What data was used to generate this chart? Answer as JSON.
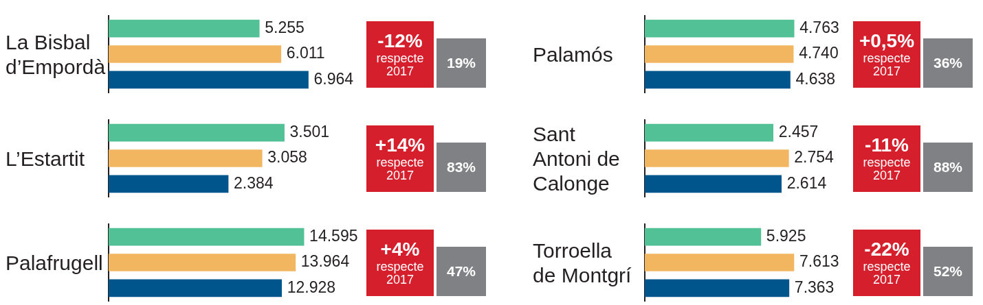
{
  "chart_data": [
    {
      "type": "bar",
      "orientation": "horizontal",
      "title": "La Bisbal d’Empordà",
      "categories": [
        null,
        null,
        null
      ],
      "values": [
        5255,
        6011,
        6964
      ],
      "colors": [
        "#52c196",
        "#f2b560",
        "#00558c"
      ],
      "value_labels": [
        "5.255",
        "6.011",
        "6.964"
      ],
      "tick_labels": false,
      "annotations": [
        "-12%",
        "respecte 2017",
        "19%"
      ]
    },
    {
      "type": "bar",
      "orientation": "horizontal",
      "title": "Palamós",
      "categories": [
        null,
        null,
        null
      ],
      "values": [
        4763,
        4740,
        4638
      ],
      "colors": [
        "#52c196",
        "#f2b560",
        "#00558c"
      ],
      "value_labels": [
        "4.763",
        "4.740",
        "4.638"
      ],
      "tick_labels": false,
      "annotations": [
        "+0,5%",
        "respecte 2017",
        "36%"
      ]
    },
    {
      "type": "bar",
      "orientation": "horizontal",
      "title": "L’Estartit",
      "categories": [
        null,
        null,
        null
      ],
      "values": [
        3501,
        3058,
        2384
      ],
      "colors": [
        "#52c196",
        "#f2b560",
        "#00558c"
      ],
      "value_labels": [
        "3.501",
        "3.058",
        "2.384"
      ],
      "tick_labels": false,
      "annotations": [
        "+14%",
        "respecte 2017",
        "83%"
      ]
    },
    {
      "type": "bar",
      "orientation": "horizontal",
      "title": "Sant Antoni de Calonge",
      "categories": [
        null,
        null,
        null
      ],
      "values": [
        2457,
        2754,
        2614
      ],
      "colors": [
        "#52c196",
        "#f2b560",
        "#00558c"
      ],
      "value_labels": [
        "2.457",
        "2.754",
        "2.614"
      ],
      "tick_labels": false,
      "annotations": [
        "-11%",
        "respecte 2017",
        "88%"
      ]
    },
    {
      "type": "bar",
      "orientation": "horizontal",
      "title": "Palafrugell",
      "categories": [
        null,
        null,
        null
      ],
      "values": [
        14595,
        13964,
        12928
      ],
      "colors": [
        "#52c196",
        "#f2b560",
        "#00558c"
      ],
      "value_labels": [
        "14.595",
        "13.964",
        "12.928"
      ],
      "tick_labels": false,
      "annotations": [
        "+4%",
        "respecte 2017",
        "47%"
      ]
    },
    {
      "type": "bar",
      "orientation": "horizontal",
      "title": "Torroella de Montgrí",
      "categories": [
        null,
        null,
        null
      ],
      "values": [
        5925,
        7613,
        7363
      ],
      "colors": [
        "#52c196",
        "#f2b560",
        "#00558c"
      ],
      "value_labels": [
        "5.925",
        "7.613",
        "7.363"
      ],
      "tick_labels": false,
      "annotations": [
        "-22%",
        "respecte 2017",
        "52%"
      ]
    }
  ]
}
